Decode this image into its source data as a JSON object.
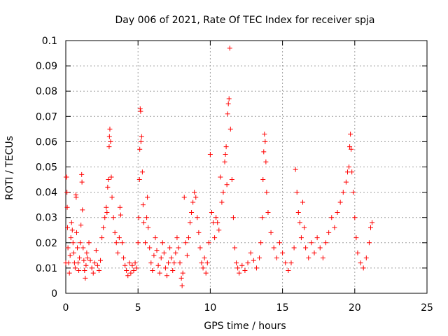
{
  "chart_data": {
    "type": "scatter",
    "title": "Day 006 of 2021, Rate Of TEC Index for receiver spja",
    "xlabel": "GPS time / hours",
    "ylabel": "ROTI / TECUs",
    "xlim": [
      0,
      25
    ],
    "ylim": [
      0,
      0.1
    ],
    "xticks": [
      "0",
      "5",
      "10",
      "15",
      "20",
      "25"
    ],
    "yticks": [
      "0",
      "0.01",
      "0.02",
      "0.03",
      "0.04",
      "0.05",
      "0.06",
      "0.07",
      "0.08",
      "0.09",
      "0.1"
    ],
    "grid": true,
    "marker": "+",
    "color": "#ff0000",
    "series": [
      {
        "points": [
          [
            0.0,
            0.012
          ],
          [
            0.02,
            0.046
          ],
          [
            0.05,
            0.046
          ],
          [
            0.08,
            0.04
          ],
          [
            0.1,
            0.034
          ],
          [
            0.12,
            0.026
          ],
          [
            0.15,
            0.018
          ],
          [
            0.2,
            0.012
          ],
          [
            0.25,
            0.008
          ],
          [
            0.3,
            0.015
          ],
          [
            0.35,
            0.022
          ],
          [
            0.4,
            0.028
          ],
          [
            0.45,
            0.025
          ],
          [
            0.5,
            0.02
          ],
          [
            0.55,
            0.016
          ],
          [
            0.6,
            0.012
          ],
          [
            0.65,
            0.01
          ],
          [
            0.7,
            0.039
          ],
          [
            0.72,
            0.038
          ],
          [
            0.75,
            0.024
          ],
          [
            0.8,
            0.018
          ],
          [
            0.85,
            0.012
          ],
          [
            0.9,
            0.009
          ],
          [
            0.95,
            0.014
          ],
          [
            1.0,
            0.02
          ],
          [
            1.05,
            0.027
          ],
          [
            1.1,
            0.047
          ],
          [
            1.12,
            0.044
          ],
          [
            1.15,
            0.033
          ],
          [
            1.2,
            0.018
          ],
          [
            1.25,
            0.013
          ],
          [
            1.3,
            0.009
          ],
          [
            1.35,
            0.006
          ],
          [
            1.4,
            0.011
          ],
          [
            1.45,
            0.016
          ],
          [
            1.5,
            0.014
          ],
          [
            1.6,
            0.02
          ],
          [
            1.7,
            0.013
          ],
          [
            1.8,
            0.01
          ],
          [
            1.9,
            0.008
          ],
          [
            2.0,
            0.012
          ],
          [
            2.1,
            0.017
          ],
          [
            2.2,
            0.011
          ],
          [
            2.3,
            0.009
          ],
          [
            2.4,
            0.013
          ],
          [
            2.5,
            0.022
          ],
          [
            2.6,
            0.026
          ],
          [
            2.7,
            0.03
          ],
          [
            2.8,
            0.034
          ],
          [
            2.85,
            0.032
          ],
          [
            2.9,
            0.042
          ],
          [
            2.95,
            0.045
          ],
          [
            3.0,
            0.058
          ],
          [
            3.02,
            0.062
          ],
          [
            3.05,
            0.065
          ],
          [
            3.1,
            0.06
          ],
          [
            3.15,
            0.046
          ],
          [
            3.2,
            0.038
          ],
          [
            3.3,
            0.03
          ],
          [
            3.4,
            0.024
          ],
          [
            3.5,
            0.02
          ],
          [
            3.6,
            0.016
          ],
          [
            3.7,
            0.022
          ],
          [
            3.75,
            0.034
          ],
          [
            3.8,
            0.031
          ],
          [
            3.9,
            0.02
          ],
          [
            4.0,
            0.014
          ],
          [
            4.1,
            0.011
          ],
          [
            4.2,
            0.009
          ],
          [
            4.3,
            0.007
          ],
          [
            4.4,
            0.012
          ],
          [
            4.5,
            0.008
          ],
          [
            4.6,
            0.011
          ],
          [
            4.7,
            0.009
          ],
          [
            4.8,
            0.012
          ],
          [
            4.9,
            0.01
          ],
          [
            5.0,
            0.02
          ],
          [
            5.05,
            0.03
          ],
          [
            5.1,
            0.045
          ],
          [
            5.12,
            0.057
          ],
          [
            5.15,
            0.073
          ],
          [
            5.18,
            0.072
          ],
          [
            5.2,
            0.06
          ],
          [
            5.25,
            0.062
          ],
          [
            5.3,
            0.048
          ],
          [
            5.35,
            0.035
          ],
          [
            5.4,
            0.028
          ],
          [
            5.5,
            0.02
          ],
          [
            5.6,
            0.03
          ],
          [
            5.65,
            0.038
          ],
          [
            5.7,
            0.026
          ],
          [
            5.8,
            0.018
          ],
          [
            5.9,
            0.012
          ],
          [
            6.0,
            0.009
          ],
          [
            6.1,
            0.015
          ],
          [
            6.2,
            0.022
          ],
          [
            6.3,
            0.017
          ],
          [
            6.4,
            0.011
          ],
          [
            6.5,
            0.008
          ],
          [
            6.6,
            0.014
          ],
          [
            6.7,
            0.02
          ],
          [
            6.8,
            0.016
          ],
          [
            6.9,
            0.01
          ],
          [
            7.0,
            0.007
          ],
          [
            7.1,
            0.012
          ],
          [
            7.2,
            0.018
          ],
          [
            7.3,
            0.014
          ],
          [
            7.4,
            0.009
          ],
          [
            7.5,
            0.012
          ],
          [
            7.6,
            0.016
          ],
          [
            7.7,
            0.022
          ],
          [
            7.8,
            0.018
          ],
          [
            7.9,
            0.012
          ],
          [
            8.0,
            0.006
          ],
          [
            8.05,
            0.003
          ],
          [
            8.1,
            0.008
          ],
          [
            8.2,
            0.038
          ],
          [
            8.3,
            0.02
          ],
          [
            8.4,
            0.015
          ],
          [
            8.5,
            0.022
          ],
          [
            8.6,
            0.028
          ],
          [
            8.7,
            0.032
          ],
          [
            8.8,
            0.036
          ],
          [
            8.9,
            0.04
          ],
          [
            9.0,
            0.038
          ],
          [
            9.1,
            0.03
          ],
          [
            9.2,
            0.024
          ],
          [
            9.3,
            0.018
          ],
          [
            9.4,
            0.012
          ],
          [
            9.5,
            0.01
          ],
          [
            9.6,
            0.014
          ],
          [
            9.7,
            0.008
          ],
          [
            9.8,
            0.012
          ],
          [
            9.9,
            0.02
          ],
          [
            10.0,
            0.055
          ],
          [
            10.1,
            0.032
          ],
          [
            10.2,
            0.028
          ],
          [
            10.3,
            0.022
          ],
          [
            10.4,
            0.03
          ],
          [
            10.5,
            0.028
          ],
          [
            10.6,
            0.025
          ],
          [
            10.7,
            0.046
          ],
          [
            10.8,
            0.036
          ],
          [
            10.9,
            0.04
          ],
          [
            11.0,
            0.052
          ],
          [
            11.05,
            0.055
          ],
          [
            11.1,
            0.058
          ],
          [
            11.15,
            0.043
          ],
          [
            11.2,
            0.071
          ],
          [
            11.25,
            0.075
          ],
          [
            11.3,
            0.077
          ],
          [
            11.35,
            0.097
          ],
          [
            11.4,
            0.065
          ],
          [
            11.5,
            0.045
          ],
          [
            11.6,
            0.03
          ],
          [
            11.7,
            0.018
          ],
          [
            11.8,
            0.012
          ],
          [
            11.9,
            0.01
          ],
          [
            12.0,
            0.008
          ],
          [
            12.2,
            0.011
          ],
          [
            12.4,
            0.009
          ],
          [
            12.6,
            0.012
          ],
          [
            12.8,
            0.016
          ],
          [
            13.0,
            0.013
          ],
          [
            13.2,
            0.01
          ],
          [
            13.4,
            0.014
          ],
          [
            13.5,
            0.02
          ],
          [
            13.6,
            0.03
          ],
          [
            13.65,
            0.045
          ],
          [
            13.7,
            0.056
          ],
          [
            13.75,
            0.063
          ],
          [
            13.8,
            0.06
          ],
          [
            13.85,
            0.052
          ],
          [
            13.9,
            0.04
          ],
          [
            14.0,
            0.032
          ],
          [
            14.2,
            0.024
          ],
          [
            14.4,
            0.018
          ],
          [
            14.6,
            0.014
          ],
          [
            14.8,
            0.02
          ],
          [
            15.0,
            0.016
          ],
          [
            15.2,
            0.012
          ],
          [
            15.4,
            0.009
          ],
          [
            15.6,
            0.012
          ],
          [
            15.8,
            0.018
          ],
          [
            15.9,
            0.049
          ],
          [
            16.0,
            0.04
          ],
          [
            16.1,
            0.032
          ],
          [
            16.2,
            0.028
          ],
          [
            16.3,
            0.022
          ],
          [
            16.4,
            0.036
          ],
          [
            16.5,
            0.026
          ],
          [
            16.6,
            0.018
          ],
          [
            16.8,
            0.014
          ],
          [
            17.0,
            0.02
          ],
          [
            17.2,
            0.016
          ],
          [
            17.4,
            0.022
          ],
          [
            17.6,
            0.018
          ],
          [
            17.8,
            0.014
          ],
          [
            18.0,
            0.02
          ],
          [
            18.2,
            0.024
          ],
          [
            18.4,
            0.03
          ],
          [
            18.6,
            0.026
          ],
          [
            18.8,
            0.032
          ],
          [
            19.0,
            0.036
          ],
          [
            19.2,
            0.04
          ],
          [
            19.4,
            0.044
          ],
          [
            19.5,
            0.048
          ],
          [
            19.6,
            0.05
          ],
          [
            19.65,
            0.058
          ],
          [
            19.7,
            0.063
          ],
          [
            19.75,
            0.057
          ],
          [
            19.8,
            0.048
          ],
          [
            19.9,
            0.04
          ],
          [
            20.0,
            0.03
          ],
          [
            20.1,
            0.022
          ],
          [
            20.2,
            0.016
          ],
          [
            20.4,
            0.012
          ],
          [
            20.6,
            0.01
          ],
          [
            20.8,
            0.014
          ],
          [
            21.0,
            0.02
          ],
          [
            21.1,
            0.026
          ],
          [
            21.2,
            0.028
          ]
        ]
      }
    ]
  }
}
